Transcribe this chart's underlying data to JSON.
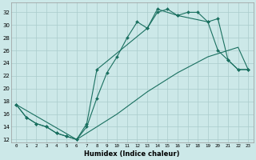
{
  "xlabel": "Humidex (Indice chaleur)",
  "background_color": "#cce8e8",
  "grid_color": "#aacccc",
  "line_color": "#1a7060",
  "xlim": [
    -0.5,
    23.5
  ],
  "ylim": [
    11.5,
    33.5
  ],
  "yticks": [
    12,
    14,
    16,
    18,
    20,
    22,
    24,
    26,
    28,
    30,
    32
  ],
  "xticks": [
    0,
    1,
    2,
    3,
    4,
    5,
    6,
    7,
    8,
    9,
    10,
    11,
    12,
    13,
    14,
    15,
    16,
    17,
    18,
    19,
    20,
    21,
    22,
    23
  ],
  "line1_x": [
    0,
    1,
    2,
    3,
    4,
    5,
    6,
    7,
    8,
    9,
    10,
    11,
    12,
    13,
    14,
    15,
    16,
    17,
    18,
    19,
    20,
    21,
    22,
    23
  ],
  "line1_y": [
    17.5,
    15.5,
    14.5,
    14.0,
    13.0,
    12.5,
    12.0,
    14.0,
    18.5,
    22.5,
    25.0,
    28.0,
    30.5,
    29.5,
    32.0,
    32.5,
    31.5,
    32.0,
    32.0,
    30.5,
    31.0,
    24.5,
    23.0,
    23.0
  ],
  "line2_x": [
    0,
    1,
    2,
    3,
    4,
    5,
    6,
    7,
    8,
    13,
    14,
    16,
    19,
    20,
    21,
    22,
    23
  ],
  "line2_y": [
    17.5,
    15.5,
    14.5,
    14.0,
    13.0,
    12.5,
    12.0,
    14.5,
    23.0,
    29.5,
    32.5,
    31.5,
    30.5,
    26.0,
    24.5,
    23.0,
    23.0
  ],
  "line3_x": [
    0,
    6,
    10,
    13,
    16,
    19,
    22,
    23
  ],
  "line3_y": [
    17.5,
    12.0,
    16.0,
    19.5,
    22.5,
    25.0,
    26.5,
    23.0
  ]
}
